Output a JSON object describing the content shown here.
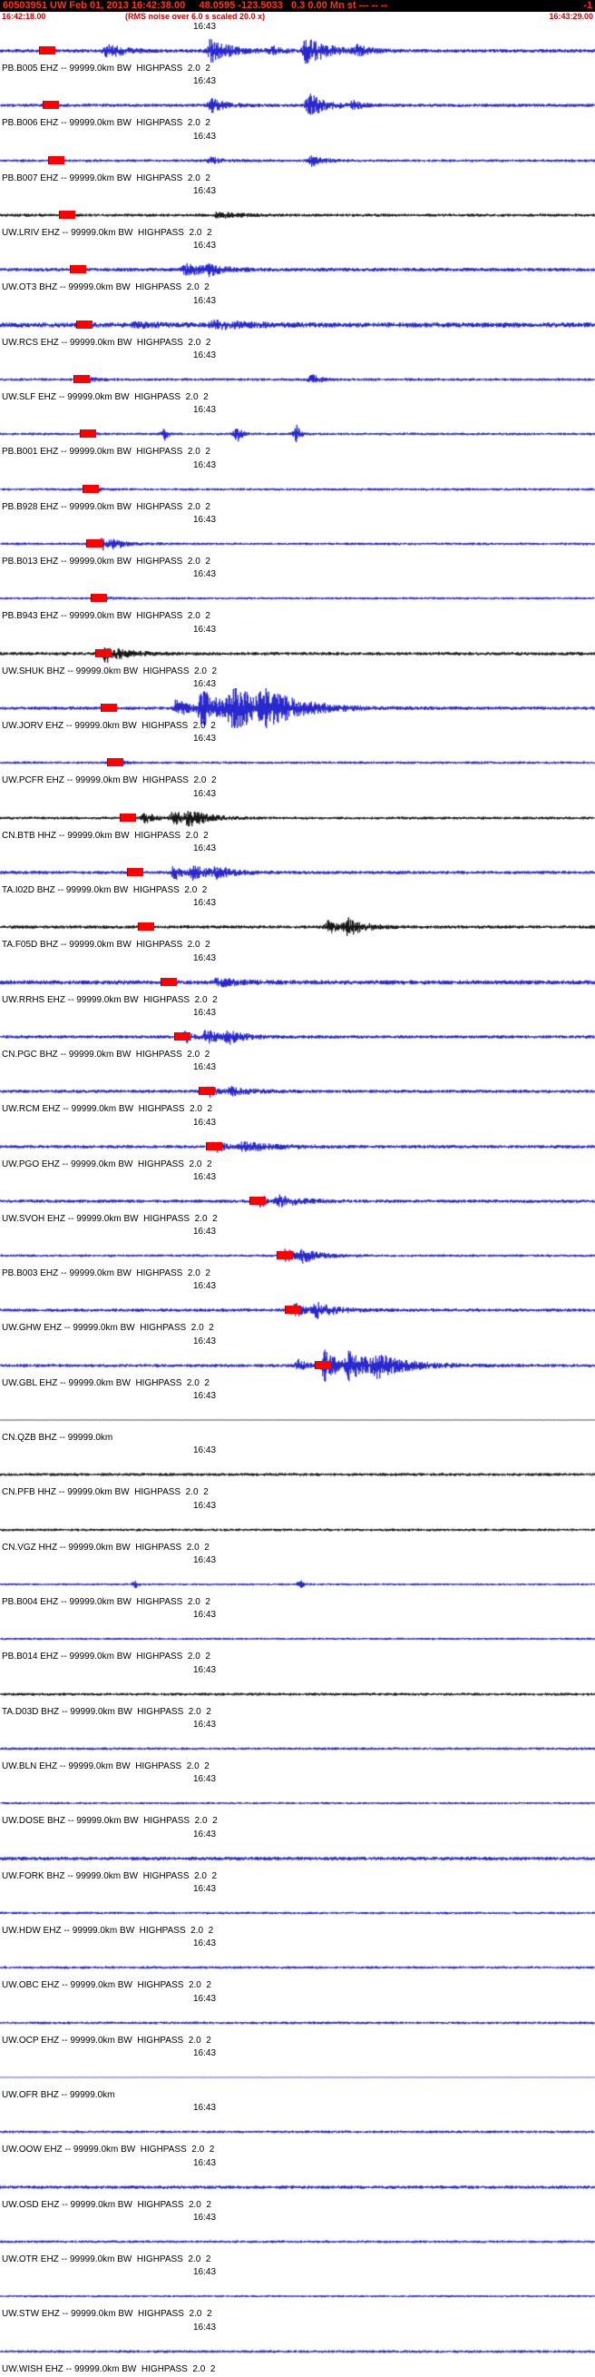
{
  "header": {
    "summary": "60503951 UW Feb 01, 2013 16:42:38.00     48.0595 -123.5033   0.3 0.00 Mn st --- -- --",
    "flag": "-1"
  },
  "window": {
    "start_time": "16:42:18.00",
    "note": "(RMS noise over 6.0 s scaled 20.0 x)",
    "end_time": "16:43:29.00"
  },
  "time_tick": "16:43",
  "colors": {
    "header_bg": "#000000",
    "header_text": "#ff3515",
    "subheader_text": "#d40000",
    "trace_blue": "#1414cc",
    "trace_black": "#000000",
    "pick_red": "#ff0000"
  },
  "traces": [
    {
      "label": "PB.B005 EHZ -- 99999.0km BW  HIGHPASS  2.0  2",
      "color": "blue",
      "noise": 2.0,
      "pick": 52,
      "bursts": [
        [
          118,
          9,
          15
        ],
        [
          232,
          13,
          20
        ],
        [
          300,
          4,
          10
        ],
        [
          338,
          15,
          22
        ],
        [
          395,
          5,
          12
        ]
      ]
    },
    {
      "label": "PB.B006 EHZ -- 99999.0km BW  HIGHPASS  2.0  2",
      "color": "blue",
      "noise": 1.8,
      "pick": 56,
      "bursts": [
        [
          233,
          7,
          15
        ],
        [
          341,
          12,
          18
        ],
        [
          390,
          4,
          10
        ]
      ]
    },
    {
      "label": "PB.B007 EHZ -- 99999.0km BW  HIGHPASS  2.0  2",
      "color": "blue",
      "noise": 1.5,
      "pick": 62,
      "bursts": [
        [
          232,
          4,
          10
        ],
        [
          344,
          6,
          12
        ]
      ]
    },
    {
      "label": "UW.LRIV EHZ -- 99999.0km BW  HIGHPASS  2.0  2",
      "color": "black",
      "noise": 1.6,
      "pick": 74,
      "bursts": [
        [
          240,
          3,
          25
        ]
      ]
    },
    {
      "label": "UW.OT3 BHZ -- 99999.0km BW  HIGHPASS  2.0  2",
      "color": "blue",
      "noise": 2.0,
      "pick": 86,
      "bursts": [
        [
          205,
          6,
          25
        ],
        [
          230,
          4,
          15
        ]
      ]
    },
    {
      "label": "UW.RCS EHZ -- 99999.0km BW  HIGHPASS  2.0  2",
      "color": "blue",
      "noise": 2.8,
      "pick": 93,
      "bursts": [
        [
          150,
          2,
          20
        ],
        [
          235,
          4,
          35
        ]
      ]
    },
    {
      "label": "UW.SLF EHZ -- 99999.0km BW  HIGHPASS  2.0  2",
      "color": "blue",
      "noise": 1.5,
      "pick": 90,
      "bursts": [
        [
          100,
          3,
          8
        ],
        [
          344,
          5,
          10
        ]
      ]
    },
    {
      "label": "PB.B001 EHZ -- 99999.0km BW  HIGHPASS  2.0  2",
      "color": "blue",
      "noise": 1.4,
      "pick": 97,
      "bursts": [
        [
          100,
          3,
          3
        ],
        [
          183,
          8,
          3
        ],
        [
          262,
          9,
          4
        ],
        [
          327,
          9,
          4
        ]
      ]
    },
    {
      "label": "PB.B928 EHZ -- 99999.0km BW  HIGHPASS  2.0  2",
      "color": "blue",
      "noise": 1.4,
      "pick": 100,
      "bursts": [
        [
          104,
          3,
          6
        ]
      ]
    },
    {
      "label": "PB.B013 EHZ -- 99999.0km BW  HIGHPASS  2.0  2",
      "color": "blue",
      "noise": 1.4,
      "pick": 104,
      "bursts": [
        [
          113,
          6,
          8
        ],
        [
          126,
          4,
          15
        ]
      ]
    },
    {
      "label": "PB.B943 EHZ -- 99999.0km BW  HIGHPASS  2.0  2",
      "color": "blue",
      "noise": 1.3,
      "pick": 109,
      "bursts": [
        [
          112,
          3,
          6
        ]
      ]
    },
    {
      "label": "UW.SHUK BHZ -- 99999.0km BW  HIGHPASS  2.0  2",
      "color": "black",
      "noise": 1.8,
      "pick": 114,
      "bursts": [
        [
          117,
          11,
          5
        ],
        [
          130,
          4,
          25
        ]
      ]
    },
    {
      "label": "UW.JORV EHZ -- 99999.0km BW  HIGHPASS  2.0  2",
      "color": "blue",
      "noise": 1.8,
      "pick": 120,
      "bursts": [
        [
          195,
          10,
          12
        ],
        [
          222,
          20,
          25
        ],
        [
          255,
          22,
          35
        ],
        [
          290,
          14,
          40
        ]
      ]
    },
    {
      "label": "UW.PCFR EHZ -- 99999.0km BW  HIGHPASS  2.0  2",
      "color": "blue",
      "noise": 1.4,
      "pick": 127,
      "bursts": [
        [
          128,
          3,
          8
        ]
      ]
    },
    {
      "label": "CN.BTB HHZ -- 99999.0km BW  HIGHPASS  2.0  2",
      "color": "black",
      "noise": 1.5,
      "pick": 141,
      "bursts": [
        [
          160,
          5,
          12
        ],
        [
          192,
          9,
          8
        ],
        [
          208,
          8,
          22
        ]
      ]
    },
    {
      "label": "TA.I02D BHZ -- 99999.0km BW  HIGHPASS  2.0  2",
      "color": "blue",
      "noise": 1.8,
      "pick": 149,
      "bursts": [
        [
          192,
          8,
          8
        ],
        [
          213,
          7,
          20
        ],
        [
          238,
          5,
          18
        ]
      ]
    },
    {
      "label": "TA.F05D BHZ -- 99999.0km BW  HIGHPASS  2.0  2",
      "color": "black",
      "noise": 1.8,
      "pick": 161,
      "bursts": [
        [
          362,
          7,
          10
        ],
        [
          383,
          9,
          18
        ]
      ]
    },
    {
      "label": "UW.RRHS EHZ -- 99999.0km BW  HIGHPASS  2.0  2",
      "color": "blue",
      "noise": 2.4,
      "pick": 186,
      "bursts": [
        [
          240,
          4,
          22
        ]
      ]
    },
    {
      "label": "CN.PGC BHZ -- 99999.0km BW  HIGHPASS  2.0  2",
      "color": "blue",
      "noise": 1.8,
      "pick": 201,
      "bursts": [
        [
          205,
          6,
          7
        ],
        [
          228,
          8,
          12
        ],
        [
          252,
          6,
          18
        ]
      ]
    },
    {
      "label": "UW.RCM EHZ -- 99999.0km BW  HIGHPASS  2.0  2",
      "color": "blue",
      "noise": 1.8,
      "pick": 228,
      "bursts": [
        [
          230,
          6,
          8
        ],
        [
          255,
          4,
          25
        ]
      ]
    },
    {
      "label": "UW.PGO EHZ -- 99999.0km BW  HIGHPASS  2.0  2",
      "color": "blue",
      "noise": 1.8,
      "pick": 236,
      "bursts": [
        [
          238,
          6,
          10
        ],
        [
          268,
          5,
          35
        ]
      ]
    },
    {
      "label": "UW.SVOH EHZ -- 99999.0km BW  HIGHPASS  2.0  2",
      "color": "blue",
      "noise": 1.8,
      "pick": 284,
      "bursts": [
        [
          287,
          7,
          8
        ],
        [
          308,
          6,
          25
        ]
      ]
    },
    {
      "label": "PB.B003 EHZ -- 99999.0km BW  HIGHPASS  2.0  2",
      "color": "blue",
      "noise": 1.4,
      "pick": 314,
      "bursts": [
        [
          316,
          8,
          8
        ],
        [
          334,
          7,
          18
        ]
      ]
    },
    {
      "label": "UW.GHW EHZ -- 99999.0km BW  HIGHPASS  2.0  2",
      "color": "blue",
      "noise": 1.8,
      "pick": 323,
      "bursts": [
        [
          325,
          9,
          8
        ],
        [
          348,
          8,
          22
        ]
      ]
    },
    {
      "label": "UW.GBL EHZ -- 99999.0km BW  HIGHPASS  2.0  2",
      "color": "blue",
      "noise": 1.8,
      "pick": 356,
      "bursts": [
        [
          330,
          6,
          8
        ],
        [
          358,
          16,
          15
        ],
        [
          385,
          15,
          25
        ],
        [
          415,
          9,
          35
        ]
      ]
    },
    {
      "label": "CN.QZB BHZ -- 99999.0km",
      "color": "black",
      "noise": 0.3,
      "pick": null,
      "bursts": []
    },
    {
      "label": "CN.PFB HHZ -- 99999.0km BW  HIGHPASS  2.0  2",
      "color": "black",
      "noise": 1.6,
      "pick": null,
      "bursts": []
    },
    {
      "label": "CN.VGZ HHZ -- 99999.0km BW  HIGHPASS  2.0  2",
      "color": "black",
      "noise": 1.4,
      "pick": null,
      "bursts": []
    },
    {
      "label": "PB.B004 EHZ -- 99999.0km BW  HIGHPASS  2.0  2",
      "color": "blue",
      "noise": 1.2,
      "pick": null,
      "bursts": [
        [
          150,
          4,
          2
        ],
        [
          332,
          4,
          2
        ]
      ]
    },
    {
      "label": "PB.B014 EHZ -- 99999.0km BW  HIGHPASS  2.0  2",
      "color": "blue",
      "noise": 1.2,
      "pick": null,
      "bursts": []
    },
    {
      "label": "TA.D03D BHZ -- 99999.0km BW  HIGHPASS  2.0  2",
      "color": "black",
      "noise": 1.5,
      "pick": null,
      "bursts": []
    },
    {
      "label": "UW.BLN EHZ -- 99999.0km BW  HIGHPASS  2.0  2",
      "color": "blue",
      "noise": 1.4,
      "pick": null,
      "bursts": []
    },
    {
      "label": "UW.DOSE BHZ -- 99999.0km BW  HIGHPASS  2.0  2",
      "color": "blue",
      "noise": 1.2,
      "pick": null,
      "bursts": []
    },
    {
      "label": "UW.FORK BHZ -- 99999.0km BW  HIGHPASS  2.0  2",
      "color": "blue",
      "noise": 2.0,
      "pick": null,
      "bursts": []
    },
    {
      "label": "UW.HDW EHZ -- 99999.0km BW  HIGHPASS  2.0  2",
      "color": "blue",
      "noise": 1.3,
      "pick": null,
      "bursts": []
    },
    {
      "label": "UW.OBC EHZ -- 99999.0km BW  HIGHPASS  2.0  2",
      "color": "blue",
      "noise": 1.4,
      "pick": null,
      "bursts": []
    },
    {
      "label": "UW.OCP EHZ -- 99999.0km BW  HIGHPASS  2.0  2",
      "color": "blue",
      "noise": 1.4,
      "pick": null,
      "bursts": []
    },
    {
      "label": "UW.OFR BHZ -- 99999.0km",
      "color": "blue",
      "noise": 0.3,
      "pick": null,
      "bursts": []
    },
    {
      "label": "UW.OOW EHZ -- 99999.0km BW  HIGHPASS  2.0  2",
      "color": "blue",
      "noise": 1.4,
      "pick": null,
      "bursts": []
    },
    {
      "label": "UW.OSD EHZ -- 99999.0km BW  HIGHPASS  2.0  2",
      "color": "blue",
      "noise": 1.8,
      "pick": null,
      "bursts": []
    },
    {
      "label": "UW.OTR EHZ -- 99999.0km BW  HIGHPASS  2.0  2",
      "color": "blue",
      "noise": 1.4,
      "pick": null,
      "bursts": []
    },
    {
      "label": "UW.STW EHZ -- 99999.0km BW  HIGHPASS  2.0  2",
      "color": "blue",
      "noise": 1.2,
      "pick": null,
      "bursts": []
    },
    {
      "label": "UW.WISH EHZ -- 99999.0km BW  HIGHPASS  2.0  2",
      "color": "blue",
      "noise": 1.5,
      "pick": null,
      "bursts": []
    }
  ]
}
